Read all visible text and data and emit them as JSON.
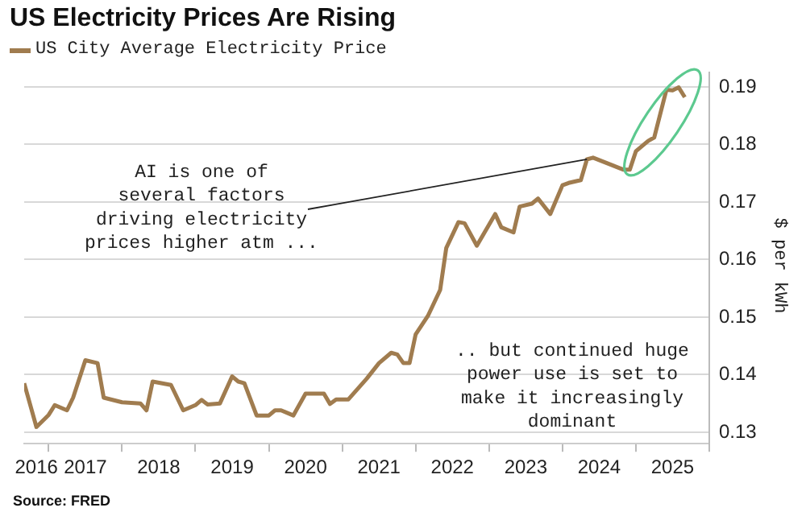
{
  "chart_data": {
    "type": "line",
    "title": "US Electricity Prices Are Rising",
    "ylabel": "$ per kWh",
    "x": [
      "2016-09",
      "2016-11",
      "2017-01",
      "2017-02",
      "2017-04",
      "2017-05",
      "2017-07",
      "2017-09",
      "2017-10",
      "2018-01",
      "2018-04",
      "2018-05",
      "2018-06",
      "2018-09",
      "2018-11",
      "2019-01",
      "2019-02",
      "2019-03",
      "2019-05",
      "2019-07",
      "2019-08",
      "2019-09",
      "2019-11",
      "2020-01",
      "2020-02",
      "2020-03",
      "2020-05",
      "2020-07",
      "2020-10",
      "2020-11",
      "2020-12",
      "2021-02",
      "2021-05",
      "2021-07",
      "2021-09",
      "2021-10",
      "2021-11",
      "2021-12",
      "2022-01",
      "2022-03",
      "2022-05",
      "2022-06",
      "2022-08",
      "2022-09",
      "2022-11",
      "2023-02",
      "2023-03",
      "2023-05",
      "2023-06",
      "2023-08",
      "2023-09",
      "2023-11",
      "2024-01",
      "2024-02",
      "2024-04",
      "2024-05",
      "2024-06",
      "2024-11",
      "2024-12",
      "2025-01",
      "2025-03",
      "2025-04",
      "2025-06",
      "2025-07",
      "2025-08",
      "2025-09"
    ],
    "series": [
      {
        "name": "US City Average Electricity Price",
        "color": "#a07c4f",
        "values": [
          0.1385,
          0.1309,
          0.133,
          0.1347,
          0.1338,
          0.136,
          0.1425,
          0.142,
          0.136,
          0.1352,
          0.135,
          0.1338,
          0.1388,
          0.1382,
          0.1338,
          0.1347,
          0.1356,
          0.1348,
          0.135,
          0.1397,
          0.1388,
          0.1385,
          0.1329,
          0.1329,
          0.1338,
          0.1338,
          0.1329,
          0.1367,
          0.1367,
          0.1349,
          0.1357,
          0.1357,
          0.1393,
          0.142,
          0.1438,
          0.1435,
          0.142,
          0.142,
          0.147,
          0.1502,
          0.1547,
          0.162,
          0.1665,
          0.1663,
          0.1624,
          0.1679,
          0.1656,
          0.1647,
          0.1692,
          0.1697,
          0.1706,
          0.1679,
          0.1729,
          0.1733,
          0.1738,
          0.1774,
          0.1777,
          0.1756,
          0.1756,
          0.1788,
          0.1806,
          0.1812,
          0.1895,
          0.1894,
          0.1899,
          0.1882
        ]
      }
    ],
    "xlim": [
      "2016-09",
      "2026-01"
    ],
    "xticks": [
      {
        "value": "2016-11",
        "label": "2016"
      },
      {
        "value": "2017",
        "label": null
      },
      {
        "value": "2017-07",
        "label": "2017"
      },
      {
        "value": "2018",
        "label": null
      },
      {
        "value": "2018-07",
        "label": "2018"
      },
      {
        "value": "2019",
        "label": null
      },
      {
        "value": "2019-07",
        "label": "2019"
      },
      {
        "value": "2020",
        "label": null
      },
      {
        "value": "2020-07",
        "label": "2020"
      },
      {
        "value": "2021",
        "label": null
      },
      {
        "value": "2021-07",
        "label": "2021"
      },
      {
        "value": "2022",
        "label": null
      },
      {
        "value": "2022-07",
        "label": "2022"
      },
      {
        "value": "2023",
        "label": null
      },
      {
        "value": "2023-07",
        "label": "2023"
      },
      {
        "value": "2024",
        "label": null
      },
      {
        "value": "2024-07",
        "label": "2024"
      },
      {
        "value": "2025",
        "label": null
      },
      {
        "value": "2025-07",
        "label": "2025"
      },
      {
        "value": "2026",
        "label": null
      }
    ],
    "ylim": [
      0.128,
      0.1925
    ],
    "yticks": [
      0.13,
      0.14,
      0.15,
      0.16,
      0.17,
      0.18,
      0.19
    ],
    "grid": "y",
    "legend": "top left",
    "marker": "none",
    "line_style": "solid",
    "annotations": [
      {
        "text": "AI is one of\nseveral factors\ndriving electricity\nprices higher atm ...",
        "x": "2024-05",
        "y": 0.1774
      },
      ".. but continued huge\npower use is set to\nmake it increasingly\ndominant",
      "Source: FRED"
    ]
  }
}
